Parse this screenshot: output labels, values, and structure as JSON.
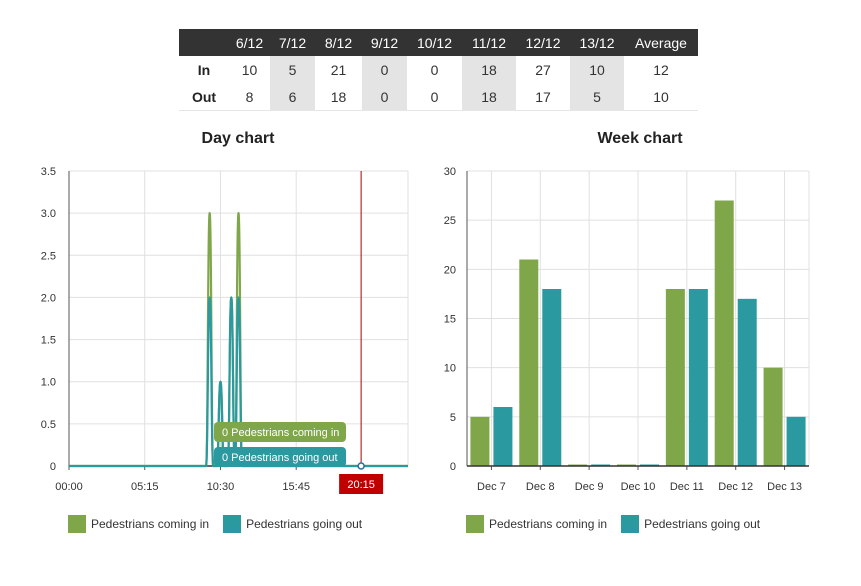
{
  "colors": {
    "in": "#7fa74a",
    "out": "#2a9aa0",
    "marker": "#b00000",
    "header_bg": "#333333"
  },
  "table": {
    "header": [
      "",
      "6/12",
      "7/12",
      "8/12",
      "9/12",
      "10/12",
      "11/12",
      "12/12",
      "13/12",
      "Average"
    ],
    "rows": [
      {
        "label": "In",
        "values": [
          "10",
          "5",
          "21",
          "0",
          "0",
          "18",
          "27",
          "10",
          "12"
        ]
      },
      {
        "label": "Out",
        "values": [
          "8",
          "6",
          "18",
          "0",
          "0",
          "18",
          "17",
          "5",
          "10"
        ]
      }
    ]
  },
  "day_chart": {
    "title": "Day chart",
    "tooltip_in": "0 Pedestrians coming in",
    "tooltip_out": "0 Pedestrians going out",
    "marker_label": "20:15",
    "legend": [
      "Pedestrians coming in",
      "Pedestrians going out"
    ]
  },
  "week_chart": {
    "title": "Week chart",
    "legend": [
      "Pedestrians coming in",
      "Pedestrians going out"
    ]
  },
  "chart_data": [
    {
      "type": "line",
      "title": "Day chart",
      "x_ticks": [
        "00:00",
        "05:15",
        "10:30",
        "15:45"
      ],
      "y_ticks": [
        "0",
        "0.5",
        "1.0",
        "1.5",
        "2.0",
        "2.5",
        "3.0",
        "3.5"
      ],
      "ylim": [
        0,
        3.5
      ],
      "xlim_hours": [
        0,
        23.5
      ],
      "grid": true,
      "legend_position": "bottom-left",
      "marker_time_hours": 20.25,
      "series": [
        {
          "name": "Pedestrians coming in",
          "x_hours": [
            0,
            9.5,
            9.75,
            10.0,
            10.25,
            10.5,
            10.75,
            11.0,
            11.25,
            11.5,
            11.75,
            12.0,
            12.25,
            12.5,
            23.5
          ],
          "y": [
            0,
            0,
            3,
            0,
            0,
            1,
            0,
            0,
            2,
            0,
            3,
            0,
            0,
            0,
            0
          ]
        },
        {
          "name": "Pedestrians going out",
          "x_hours": [
            0,
            9.5,
            9.75,
            10.0,
            10.25,
            10.5,
            10.75,
            11.0,
            11.25,
            11.5,
            11.75,
            12.0,
            12.25,
            12.5,
            23.5
          ],
          "y": [
            0,
            0,
            2,
            0,
            0,
            1,
            0,
            0,
            2,
            0,
            2,
            0,
            0,
            0,
            0
          ]
        }
      ]
    },
    {
      "type": "bar",
      "title": "Week chart",
      "categories": [
        "Dec 7",
        "Dec 8",
        "Dec 9",
        "Dec 10",
        "Dec 11",
        "Dec 12",
        "Dec 13"
      ],
      "y_ticks": [
        "0",
        "5",
        "10",
        "15",
        "20",
        "25",
        "30"
      ],
      "ylim": [
        0,
        30
      ],
      "grid": true,
      "legend_position": "bottom-left",
      "series": [
        {
          "name": "Pedestrians coming in",
          "values": [
            5,
            21,
            0,
            0,
            18,
            27,
            10
          ]
        },
        {
          "name": "Pedestrians going out",
          "values": [
            6,
            18,
            0,
            0,
            18,
            17,
            5
          ]
        }
      ]
    }
  ]
}
